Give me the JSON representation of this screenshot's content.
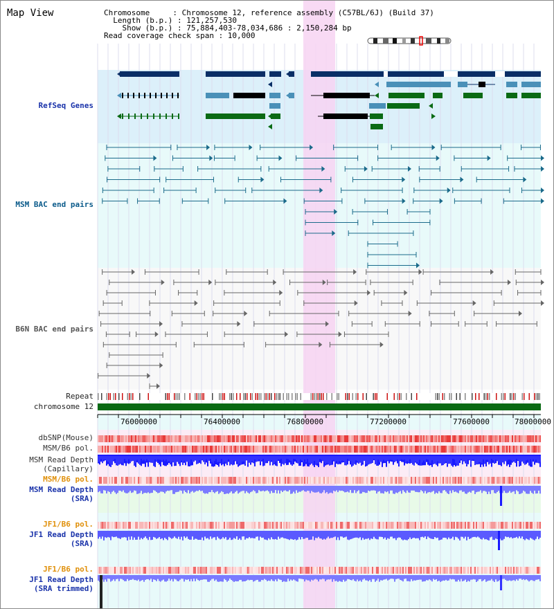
{
  "view": {
    "title": "Map View",
    "info_lines": [
      "Chromosome     : Chromosome 12, reference assembly (C57BL/6J) (Build 37)",
      "  Length (b.p.) : 121,257,530",
      "    Show (b.p.) : 75,884,403-78,034,686 : 2,150,284 bp",
      "Read coverage check span : 10,000"
    ]
  },
  "tracks": {
    "refseq": "RefSeq Genes",
    "msm_bac": "MSM BAC end pairs",
    "b6n_bac": "B6N BAC end pairs",
    "repeat": "Repeat",
    "chromosome": "chromosome 12",
    "dbsnp": "dbSNP(Mouse)",
    "msm_b6_pol": "MSM/B6 pol.",
    "msm_depth_cap_1": "MSM Read Depth",
    "msm_depth_cap_2": "(Capillary)",
    "msm_b6_pol2": "MSM/B6 pol.",
    "msm_depth_sra_1": "MSM Read Depth",
    "msm_depth_sra_2": "(SRA)",
    "jf1_b6_pol": "JF1/B6 pol.",
    "jf1_depth_1": "JF1 Read Depth",
    "jf1_depth_2": "(SRA)",
    "jf1_b6_pol2": "JF1/B6 pol.",
    "jf1_trim_1": "JF1 Read Depth",
    "jf1_trim_2": "(SRA trimmed)"
  },
  "axis": {
    "ticks": [
      "76000000",
      "76400000",
      "76800000",
      "77200000",
      "77600000",
      "78000000"
    ]
  },
  "colors": {
    "refseq_bg": "#dcf0fa",
    "bac_bg": "#e8fafa",
    "b6n_bg": "#f8f8f8",
    "highlight": "#f7d4f2",
    "gene_dark": "#0a2e66",
    "gene_mid": "#4a90b8",
    "gene_black": "#000000",
    "gene_green": "#0a6a14",
    "bac_teal": "#1a6a8a",
    "bac_grey": "#666666",
    "chrom_green": "#0a6a14",
    "depth_blue": "#1a1aff",
    "depth_light": "#7a7aff"
  }
}
